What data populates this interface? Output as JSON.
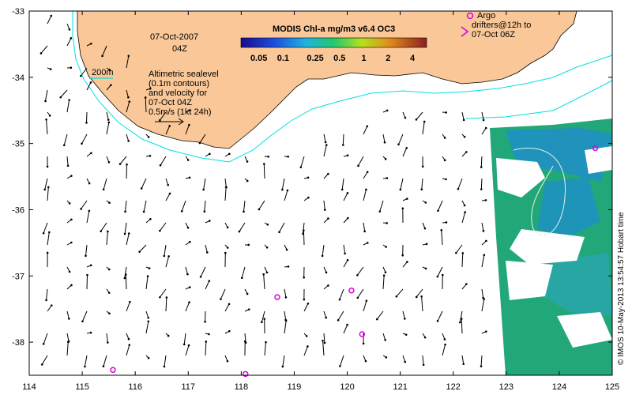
{
  "map": {
    "date": "07-Oct-2007",
    "time": "04Z",
    "colorbar": {
      "title": "MODIS Chl-a mg/m3 v6.4 OC3",
      "ticks": [
        "0.05",
        "0.1",
        "0.25",
        "0.5",
        "1",
        "2",
        "4"
      ]
    },
    "contour_legend": "200m",
    "sealevel_note": [
      "Altimetric sealevel",
      "(0.1m contours)",
      "and velocity for",
      "07-Oct 04Z"
    ],
    "scale_label": "0.5m/s (1kt 24h)",
    "argo_legend": [
      "Argo",
      "drifters@12h to",
      "07-Oct 06Z"
    ],
    "credit": "© IMOS 10-May-2013 13:54:57 Hobart time",
    "x_axis_labels": [
      "114",
      "115",
      "116",
      "117",
      "118",
      "119",
      "120",
      "121",
      "122",
      "123",
      "124",
      "125"
    ],
    "y_axis_labels": [
      "-33",
      "-34",
      "-35",
      "-36",
      "-37",
      "-38"
    ],
    "colors": {
      "land": "#fac898",
      "chl_green": "#22a878",
      "chl_blue": "#1e8fc8",
      "contour_200m": "#00e0e0",
      "argo": "#e000e0"
    },
    "argo_floats": [
      {
        "lon": 115.58,
        "lat": -38.42
      },
      {
        "lon": 118.08,
        "lat": -38.48
      },
      {
        "lon": 118.68,
        "lat": -37.32
      },
      {
        "lon": 120.08,
        "lat": -37.22
      },
      {
        "lon": 120.28,
        "lat": -37.88
      },
      {
        "lon": 124.68,
        "lat": -35.07
      }
    ]
  }
}
